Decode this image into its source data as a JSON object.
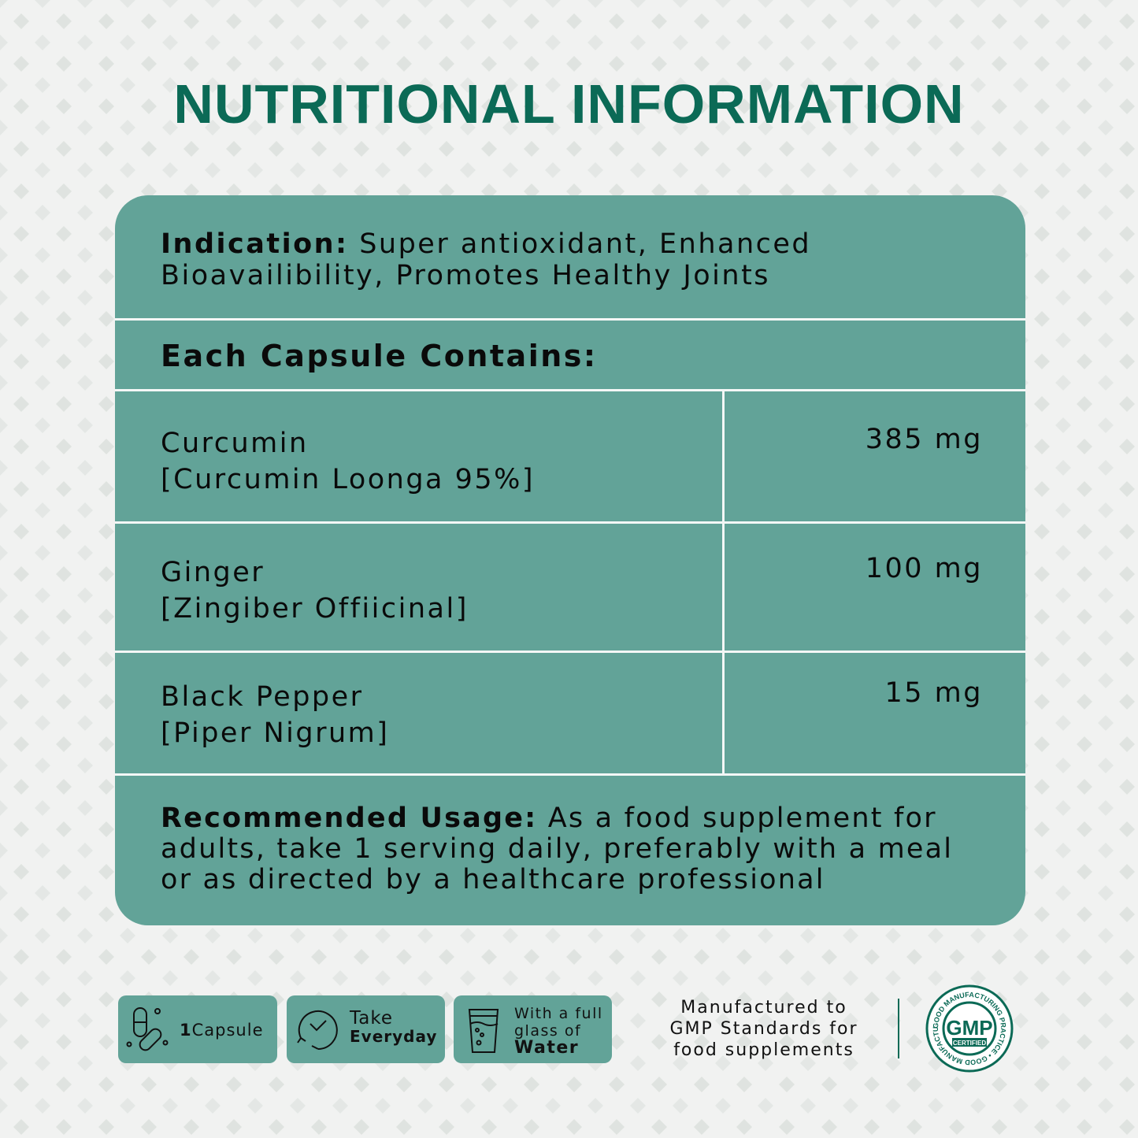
{
  "title": "NUTRITIONAL INFORMATION",
  "colors": {
    "accent": "#0b6a56",
    "panel": "#62a398",
    "background": "#f1f2f1"
  },
  "indication": {
    "label": "Indication:",
    "text_line1": "Super antioxidant, Enhanced",
    "text_line2": "Bioavailibility, Promotes Healthy Joints"
  },
  "capsule_header": "Each Capsule Contains:",
  "ingredients": [
    {
      "name": "Curcumin",
      "detail": "[Curcumin Loonga 95%]",
      "amount": "385 mg"
    },
    {
      "name": "Ginger",
      "detail": "[Zingiber Offiicinal]",
      "amount": "100 mg"
    },
    {
      "name": "Black Pepper",
      "detail": "[Piper Nigrum]",
      "amount": "15 mg"
    }
  ],
  "usage": {
    "label": "Recommended Usage:",
    "line1": "As a food supplement for",
    "line2": "adults, take 1 serving daily, preferably with a meal",
    "line3": "or as directed by a healthcare professional"
  },
  "badges": [
    {
      "icon": "capsule-icon",
      "bold": "1",
      "text": "Capsule"
    },
    {
      "icon": "clock-icon",
      "text": "Take",
      "bold": "Everyday"
    },
    {
      "icon": "water-glass-icon",
      "text1": "With a full",
      "text2": "glass of",
      "bold": "Water"
    }
  ],
  "gmp": {
    "line1": "Manufactured to",
    "line2": "GMP Standards for",
    "line3": "food supplements",
    "seal": {
      "center": "GMP",
      "sub": "CERTIFIED",
      "ring": "GOOD MANUFACTURING PRACTICE"
    }
  }
}
